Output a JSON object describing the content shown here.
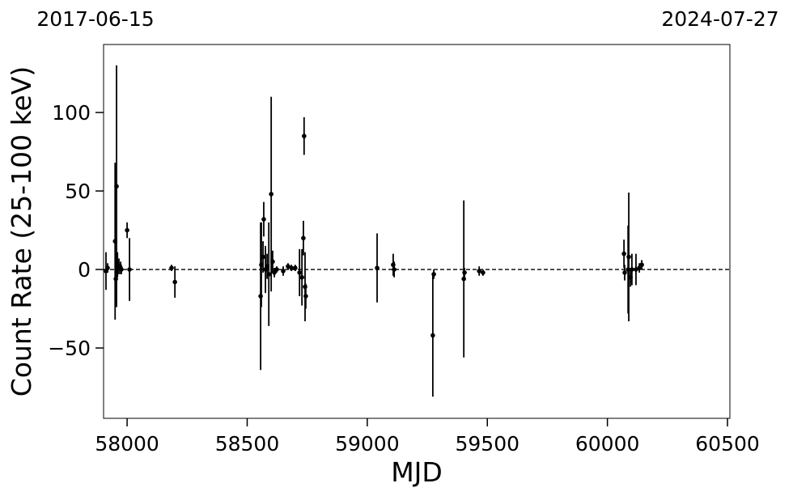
{
  "chart_data": {
    "type": "errorbar",
    "x_label": "MJD",
    "y_label": "Count Rate (25-100 keV)",
    "date_start": "2017-06-15",
    "date_end": "2024-07-27",
    "color": "#000000",
    "hline": 0,
    "xlim": [
      57902,
      60510
    ],
    "ylim": [
      -94.8,
      143.3
    ],
    "xticks": [
      58000,
      58500,
      59000,
      59500,
      60000,
      60500
    ],
    "yticks": [
      {
        "value": -50,
        "label": "−50"
      },
      0,
      50,
      100
    ],
    "x": [
      57912,
      57919,
      57950,
      57953,
      57956,
      57960,
      57966,
      57973,
      57976,
      58000,
      58010,
      58185,
      58199,
      58556,
      58559,
      58566,
      58569,
      58576,
      58583,
      58590,
      58600,
      58606,
      58613,
      58623,
      58650,
      58670,
      58684,
      58700,
      58718,
      58728,
      58734,
      58737,
      58741,
      58744,
      59041,
      59108,
      59112,
      59273,
      59277,
      59402,
      59405,
      59466,
      59482,
      60069,
      60072,
      60086,
      60089,
      60096,
      60102,
      60119,
      60133,
      60143
    ],
    "values": [
      -1,
      1,
      18,
      -6,
      53,
      3,
      2,
      1,
      0,
      25,
      0,
      1,
      -8,
      -17,
      3,
      8,
      32,
      0,
      2,
      -3,
      48,
      5,
      -2,
      0,
      -1,
      2,
      1,
      1,
      -2,
      -5,
      20,
      85,
      -11,
      -17,
      1,
      3,
      0,
      -42,
      -3,
      -6,
      -2,
      -1,
      -2,
      10,
      -2,
      0,
      8,
      -5,
      0,
      0,
      1,
      3
    ],
    "errors": [
      12,
      3,
      50,
      16,
      77,
      8,
      5,
      4,
      3,
      5,
      20,
      2,
      10,
      47,
      27,
      10,
      11,
      15,
      8,
      33,
      62,
      7,
      3,
      2,
      3,
      2,
      2,
      2,
      15,
      18,
      11,
      12,
      22,
      8,
      22,
      7,
      5,
      39,
      3,
      50,
      3,
      3,
      2,
      9,
      5,
      28,
      41,
      6,
      10,
      10,
      3,
      3
    ]
  }
}
